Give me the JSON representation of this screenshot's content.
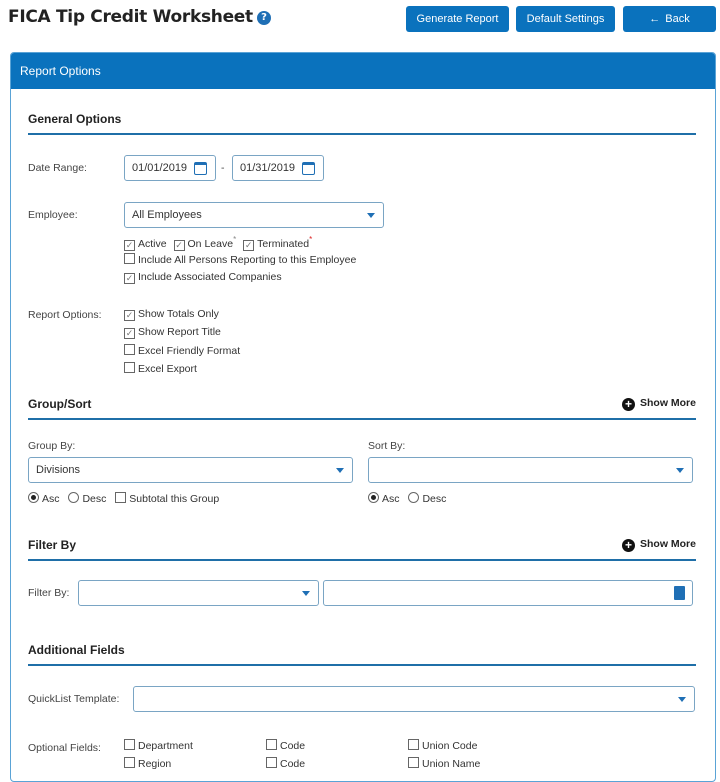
{
  "header": {
    "title": "FICA Tip Credit Worksheet",
    "help_icon": "?",
    "generate": "Generate Report",
    "defaults": "Default Settings",
    "back": "Back",
    "back_icon": "←"
  },
  "panel": {
    "title": "Report Options"
  },
  "general": {
    "title": "General Options",
    "date_label": "Date Range:",
    "date_from": "01/01/2019",
    "date_sep": "-",
    "date_to": "01/31/2019",
    "employee_label": "Employee:",
    "employee_value": "All Employees",
    "status": [
      {
        "label": "Active",
        "checked": true
      },
      {
        "label": "On Leave",
        "checked": true,
        "mark": "*"
      },
      {
        "label": "Terminated",
        "checked": true,
        "mark": "*"
      }
    ],
    "include_reporting": {
      "label": "Include All Persons Reporting to this Employee",
      "checked": false
    },
    "include_assoc": {
      "label": "Include Associated Companies",
      "checked": true
    },
    "report_options_label": "Report Options:",
    "report_options": [
      {
        "label": "Show Totals Only",
        "checked": true
      },
      {
        "label": "Show Report Title",
        "checked": true
      },
      {
        "label": "Excel Friendly Format",
        "checked": false
      },
      {
        "label": "Excel Export",
        "checked": false
      }
    ]
  },
  "group": {
    "title": "Group/Sort",
    "show_more": "Show More",
    "group_label": "Group By:",
    "group_value": "Divisions",
    "sort_label": "Sort By:",
    "sort_value": "",
    "asc": "Asc",
    "desc": "Desc",
    "subtotal": "Subtotal this Group"
  },
  "filter": {
    "title": "Filter By",
    "show_more": "Show More",
    "label": "Filter By:",
    "value": "",
    "text": ""
  },
  "additional": {
    "title": "Additional Fields",
    "quicklist_label": "QuickList Template:",
    "quicklist_value": "",
    "optional_label": "Optional Fields:",
    "fields": [
      [
        "Department",
        "Region"
      ],
      [
        "Code",
        "Code"
      ],
      [
        "Union Code",
        "Union Name"
      ]
    ]
  },
  "colors": {
    "accent": "#0a72bd"
  }
}
